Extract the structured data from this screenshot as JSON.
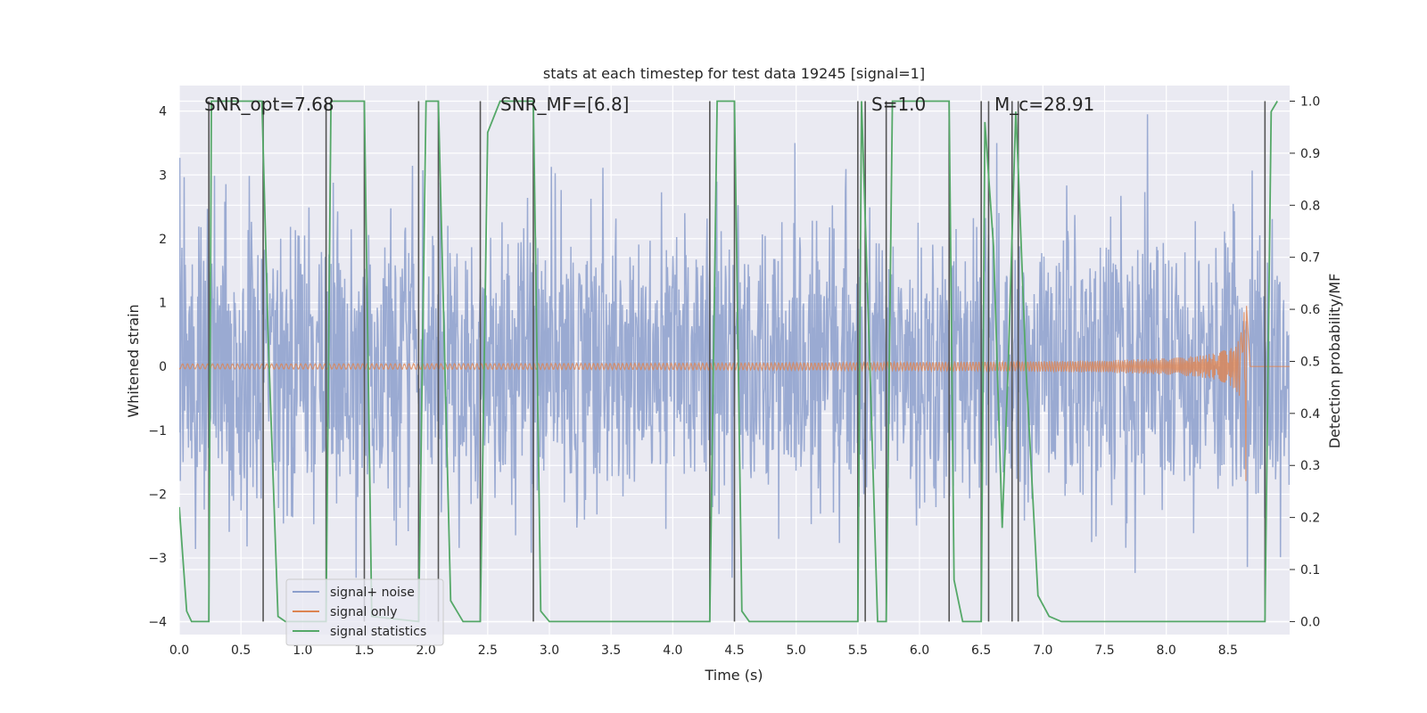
{
  "chart_data": {
    "type": "line",
    "title": "stats at each timestep for test data 19245 [signal=1]",
    "xlabel": "Time (s)",
    "ylabel": "Whitened strain",
    "ylabel_right": "Detection probability/MF",
    "xlim": [
      0.0,
      9.0
    ],
    "ylim": [
      -4.2,
      4.4
    ],
    "ylim_right": [
      -0.025,
      1.03
    ],
    "xticks": [
      0.0,
      0.5,
      1.0,
      1.5,
      2.0,
      2.5,
      3.0,
      3.5,
      4.0,
      4.5,
      5.0,
      5.5,
      6.0,
      6.5,
      7.0,
      7.5,
      8.0,
      8.5
    ],
    "xtick_labels": [
      "0.0",
      "0.5",
      "1.0",
      "1.5",
      "2.0",
      "2.5",
      "3.0",
      "3.5",
      "4.0",
      "4.5",
      "5.0",
      "5.5",
      "6.0",
      "6.5",
      "7.0",
      "7.5",
      "8.0",
      "8.5"
    ],
    "yticks": [
      -4,
      -3,
      -2,
      -1,
      0,
      1,
      2,
      3,
      4
    ],
    "ytick_labels": [
      "−4",
      "−3",
      "−2",
      "−1",
      "0",
      "1",
      "2",
      "3",
      "4"
    ],
    "yticks_right": [
      0.0,
      0.1,
      0.2,
      0.3,
      0.4,
      0.5,
      0.6,
      0.7,
      0.8,
      0.9,
      1.0
    ],
    "ytick_labels_right": [
      "0.0",
      "0.1",
      "0.2",
      "0.3",
      "0.4",
      "0.5",
      "0.6",
      "0.7",
      "0.8",
      "0.9",
      "1.0"
    ],
    "annotations": [
      {
        "name": "snr-opt-annotation",
        "text": "SNR_opt=7.68",
        "x": 0.2
      },
      {
        "name": "snr-mf-annotation",
        "text": "SNR_MF=[6.8]",
        "x": 2.6
      },
      {
        "name": "s-annotation",
        "text": "S=1.0",
        "x": 5.62
      },
      {
        "name": "mc-annotation",
        "text": "M_c=28.91",
        "x": 6.7
      }
    ],
    "vlines": [
      0.24,
      0.68,
      1.19,
      1.5,
      1.94,
      2.1,
      2.44,
      2.87,
      4.3,
      4.5,
      5.5,
      5.56,
      5.73,
      6.24,
      6.5,
      6.56,
      6.75,
      6.8,
      8.8
    ],
    "series": [
      {
        "name": "signal+ noise",
        "color": "#8c9fcc",
        "axis": "left",
        "kind": "noise",
        "amplitude_envelope": [
          1.7,
          3.5
        ],
        "n_samples": 2048,
        "seed": 19245
      },
      {
        "name": "signal only",
        "color": "#dd8452",
        "axis": "left",
        "kind": "chirp",
        "merger_time": 8.65,
        "peak_amplitude": 2.0
      },
      {
        "name": "signal statistics",
        "color": "#55a868",
        "axis": "right",
        "kind": "line",
        "x": [
          0.0,
          0.06,
          0.1,
          0.24,
          0.26,
          0.3,
          0.67,
          0.72,
          0.8,
          0.86,
          1.19,
          1.23,
          1.5,
          1.56,
          1.94,
          2.0,
          2.1,
          2.2,
          2.3,
          2.44,
          2.5,
          2.6,
          2.87,
          2.93,
          3.0,
          3.5,
          4.0,
          4.3,
          4.36,
          4.5,
          4.56,
          4.62,
          5.0,
          5.5,
          5.53,
          5.6,
          5.66,
          5.73,
          5.78,
          6.24,
          6.28,
          6.35,
          6.5,
          6.53,
          6.6,
          6.67,
          6.72,
          6.78,
          6.8,
          6.86,
          6.96,
          7.05,
          7.15,
          8.0,
          8.8,
          8.85,
          8.9
        ],
        "y": [
          0.22,
          0.02,
          0.0,
          0.0,
          1.0,
          1.0,
          1.0,
          0.55,
          0.01,
          0.0,
          0.0,
          1.0,
          1.0,
          0.01,
          0.0,
          1.0,
          1.0,
          0.04,
          0.0,
          0.0,
          0.94,
          1.0,
          1.0,
          0.02,
          0.0,
          0.0,
          0.0,
          0.0,
          1.0,
          1.0,
          0.02,
          0.0,
          0.0,
          0.0,
          1.0,
          0.47,
          0.0,
          0.0,
          1.0,
          1.0,
          0.08,
          0.0,
          0.0,
          0.96,
          0.72,
          0.18,
          0.5,
          0.98,
          0.87,
          0.5,
          0.05,
          0.01,
          0.0,
          0.0,
          0.0,
          0.98,
          1.0
        ]
      }
    ],
    "legend": {
      "placement": "lower left",
      "entries": [
        "signal+ noise",
        "signal only",
        "signal statistics"
      ]
    }
  },
  "colors": {
    "plot_background": "#eaeaf2",
    "grid": "#ffffff",
    "vline": "#555555",
    "text": "#262626"
  }
}
